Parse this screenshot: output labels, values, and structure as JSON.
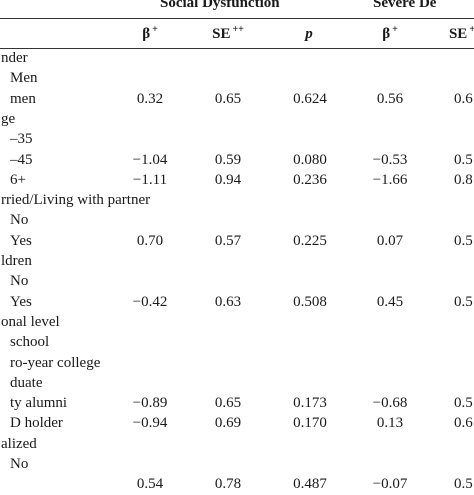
{
  "header": {
    "group1": "Social Dysfunction",
    "group2": "Severe De",
    "subheaders": [
      {
        "label": "β",
        "sup": "+"
      },
      {
        "label": "SE",
        "sup": "++"
      },
      {
        "label": "p",
        "sup": ""
      },
      {
        "label": "β",
        "sup": "+"
      },
      {
        "label": "SE",
        "sup": "+"
      }
    ]
  },
  "rows": [
    {
      "label": "nder",
      "indent": 0,
      "vals": [
        "",
        "",
        "",
        "",
        ""
      ]
    },
    {
      "label": "Men",
      "indent": 1,
      "vals": [
        "",
        "",
        "",
        "",
        ""
      ]
    },
    {
      "label": "men",
      "indent": 1,
      "vals": [
        "0.32",
        "0.65",
        "0.624",
        "0.56",
        "0.6"
      ]
    },
    {
      "label": "ge",
      "indent": 0,
      "vals": [
        "",
        "",
        "",
        "",
        ""
      ]
    },
    {
      "label": "–35",
      "indent": 1,
      "vals": [
        "",
        "",
        "",
        "",
        ""
      ]
    },
    {
      "label": "–45",
      "indent": 1,
      "vals": [
        "−1.04",
        "0.59",
        "0.080",
        "−0.53",
        "0.5"
      ]
    },
    {
      "label": "6+",
      "indent": 1,
      "vals": [
        "−1.11",
        "0.94",
        "0.236",
        "−1.66",
        "0.8"
      ]
    },
    {
      "label": "rried/Living with partner",
      "indent": 0,
      "vals": [
        "",
        "",
        "",
        "",
        ""
      ]
    },
    {
      "label": "No",
      "indent": 1,
      "vals": [
        "",
        "",
        "",
        "",
        ""
      ]
    },
    {
      "label": "Yes",
      "indent": 1,
      "vals": [
        "0.70",
        "0.57",
        "0.225",
        "0.07",
        "0.5"
      ]
    },
    {
      "label": "ldren",
      "indent": 0,
      "vals": [
        "",
        "",
        "",
        "",
        ""
      ]
    },
    {
      "label": "No",
      "indent": 1,
      "vals": [
        "",
        "",
        "",
        "",
        ""
      ]
    },
    {
      "label": "Yes",
      "indent": 1,
      "vals": [
        "−0.42",
        "0.63",
        "0.508",
        "0.45",
        "0.5"
      ]
    },
    {
      "label": "onal level",
      "indent": 0,
      "vals": [
        "",
        "",
        "",
        "",
        ""
      ]
    },
    {
      "label": "school",
      "indent": 1,
      "vals": [
        "",
        "",
        "",
        "",
        ""
      ]
    },
    {
      "label": "ro-year college",
      "indent": 1,
      "vals": [
        "",
        "",
        "",
        "",
        ""
      ]
    },
    {
      "label": "duate",
      "indent": 1,
      "vals": [
        "",
        "",
        "",
        "",
        ""
      ]
    },
    {
      "label": "ty alumni",
      "indent": 1,
      "vals": [
        "−0.89",
        "0.65",
        "0.173",
        "−0.68",
        "0.5"
      ]
    },
    {
      "label": "D holder",
      "indent": 1,
      "vals": [
        "−0.94",
        "0.69",
        "0.170",
        "0.13",
        "0.6"
      ]
    },
    {
      "label": "alized",
      "indent": 0,
      "vals": [
        "",
        "",
        "",
        "",
        ""
      ]
    },
    {
      "label": "No",
      "indent": 1,
      "vals": [
        "",
        "",
        "",
        "",
        ""
      ]
    },
    {
      "label": "",
      "indent": 1,
      "vals": [
        "0.54",
        "0.78",
        "0.487",
        "−0.07",
        "0.5"
      ]
    }
  ]
}
